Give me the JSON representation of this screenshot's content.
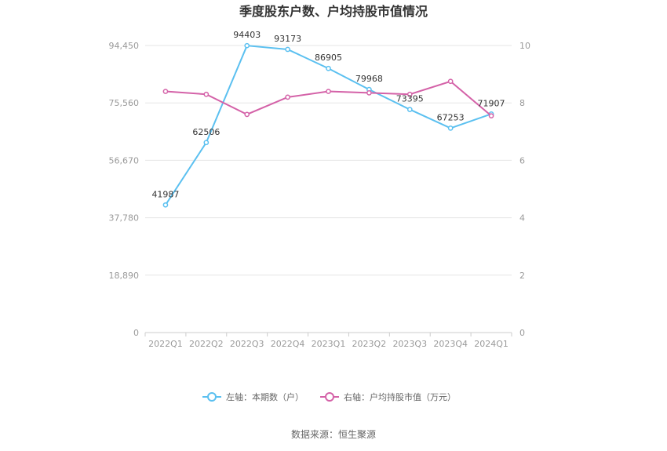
{
  "chart_data": {
    "type": "line",
    "title": "季度股东户数、户均持股市值情况",
    "categories": [
      "2022Q1",
      "2022Q2",
      "2022Q3",
      "2022Q4",
      "2023Q1",
      "2023Q2",
      "2023Q3",
      "2023Q4",
      "2024Q1"
    ],
    "series": [
      {
        "name": "左轴：本期数（户）",
        "axis": "left",
        "color": "#5bc0f0",
        "values": [
          41987,
          62506,
          94403,
          93173,
          86905,
          79968,
          73395,
          67253,
          71907
        ],
        "labels": [
          "41987",
          "62506",
          "94403",
          "93173",
          "86905",
          "79968",
          "73395",
          "67253",
          "71907"
        ]
      },
      {
        "name": "右轴：户均持股市值（万元）",
        "axis": "right",
        "color": "#d462a8",
        "values": [
          8.4,
          8.3,
          7.6,
          8.2,
          8.4,
          8.35,
          8.3,
          8.75,
          7.55
        ]
      }
    ],
    "y_left": {
      "ticks": [
        "0",
        "18,890",
        "37,780",
        "56,670",
        "75,560",
        "94,450"
      ],
      "max": 94450
    },
    "y_right": {
      "ticks": [
        "0",
        "2",
        "4",
        "6",
        "8",
        "10"
      ],
      "max": 10
    },
    "grid": true,
    "legend_position": "bottom"
  },
  "source_text": "数据来源：恒生聚源"
}
